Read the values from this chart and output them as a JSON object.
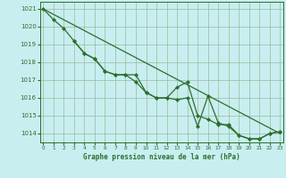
{
  "title": "Graphe pression niveau de la mer (hPa)",
  "bg_color": "#c8eef0",
  "grid_color": "#99bb99",
  "line_color": "#2d6e2d",
  "xlim": [
    -0.3,
    23.3
  ],
  "ylim": [
    1013.5,
    1021.4
  ],
  "yticks": [
    1014,
    1015,
    1016,
    1017,
    1018,
    1019,
    1020,
    1021
  ],
  "xticks": [
    0,
    1,
    2,
    3,
    4,
    5,
    6,
    7,
    8,
    9,
    10,
    11,
    12,
    13,
    14,
    15,
    16,
    17,
    18,
    19,
    20,
    21,
    22,
    23
  ],
  "series_straight": {
    "x": [
      0,
      23
    ],
    "y": [
      1021.0,
      1014.0
    ]
  },
  "series_upper": {
    "x": [
      0,
      1,
      2,
      3,
      4,
      5,
      6,
      7,
      8,
      9,
      10,
      11,
      12,
      13,
      14,
      15,
      16,
      17,
      18,
      19,
      20,
      21,
      22,
      23
    ],
    "y": [
      1021.0,
      1020.4,
      1019.9,
      1019.2,
      1018.5,
      1018.2,
      1017.5,
      1017.3,
      1017.3,
      1017.3,
      1016.3,
      1016.0,
      1016.0,
      1015.9,
      1016.0,
      1014.4,
      1016.1,
      1014.6,
      1014.4,
      1013.9,
      1013.7,
      1013.7,
      1014.0,
      1014.1
    ]
  },
  "series_lower": {
    "x": [
      3,
      4,
      5,
      6,
      7,
      8,
      9,
      10,
      11,
      12,
      13,
      14,
      15,
      16,
      17,
      18,
      19,
      20,
      21,
      22,
      23
    ],
    "y": [
      1019.2,
      1018.5,
      1018.2,
      1017.5,
      1017.3,
      1017.3,
      1016.9,
      1016.3,
      1016.0,
      1016.0,
      1016.6,
      1016.9,
      1015.0,
      1014.8,
      1014.5,
      1014.5,
      1013.9,
      1013.7,
      1013.7,
      1014.0,
      1014.1
    ]
  }
}
